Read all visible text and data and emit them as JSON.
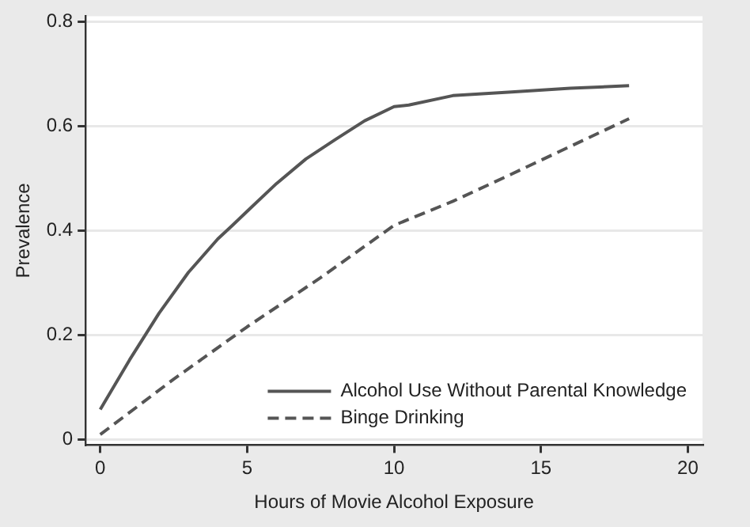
{
  "chart_data": {
    "type": "line",
    "xlabel": "Hours of Movie Alcohol Exposure",
    "ylabel": "Prevalence",
    "xlim": [
      -0.5,
      20.5
    ],
    "xticks": [
      0,
      5,
      10,
      15,
      20
    ],
    "ylim": [
      -0.01,
      0.81
    ],
    "yticks": [
      0,
      0.2,
      0.4,
      0.6,
      0.8
    ],
    "grid": "y",
    "legend": "bottom right",
    "marker": "none",
    "series": [
      {
        "name": "Alcohol Use Without Parental Knowledge",
        "color": "#555555",
        "line_style": "solid",
        "x": [
          0,
          1,
          2,
          3,
          4,
          4.5,
          5,
          6,
          7,
          8,
          9,
          10,
          10.5,
          12,
          14,
          16,
          18
        ],
        "values": [
          0.058,
          0.153,
          0.242,
          0.32,
          0.384,
          0.41,
          0.437,
          0.49,
          0.537,
          0.574,
          0.61,
          0.637,
          0.64,
          0.658,
          0.665,
          0.672,
          0.677
        ]
      },
      {
        "name": "Binge Drinking",
        "color": "#555555",
        "line_style": "dashed",
        "x": [
          0,
          2.5,
          5,
          7.5,
          10,
          12,
          14,
          16,
          18
        ],
        "values": [
          0.01,
          0.116,
          0.216,
          0.31,
          0.41,
          0.456,
          0.508,
          0.561,
          0.614
        ]
      }
    ]
  }
}
